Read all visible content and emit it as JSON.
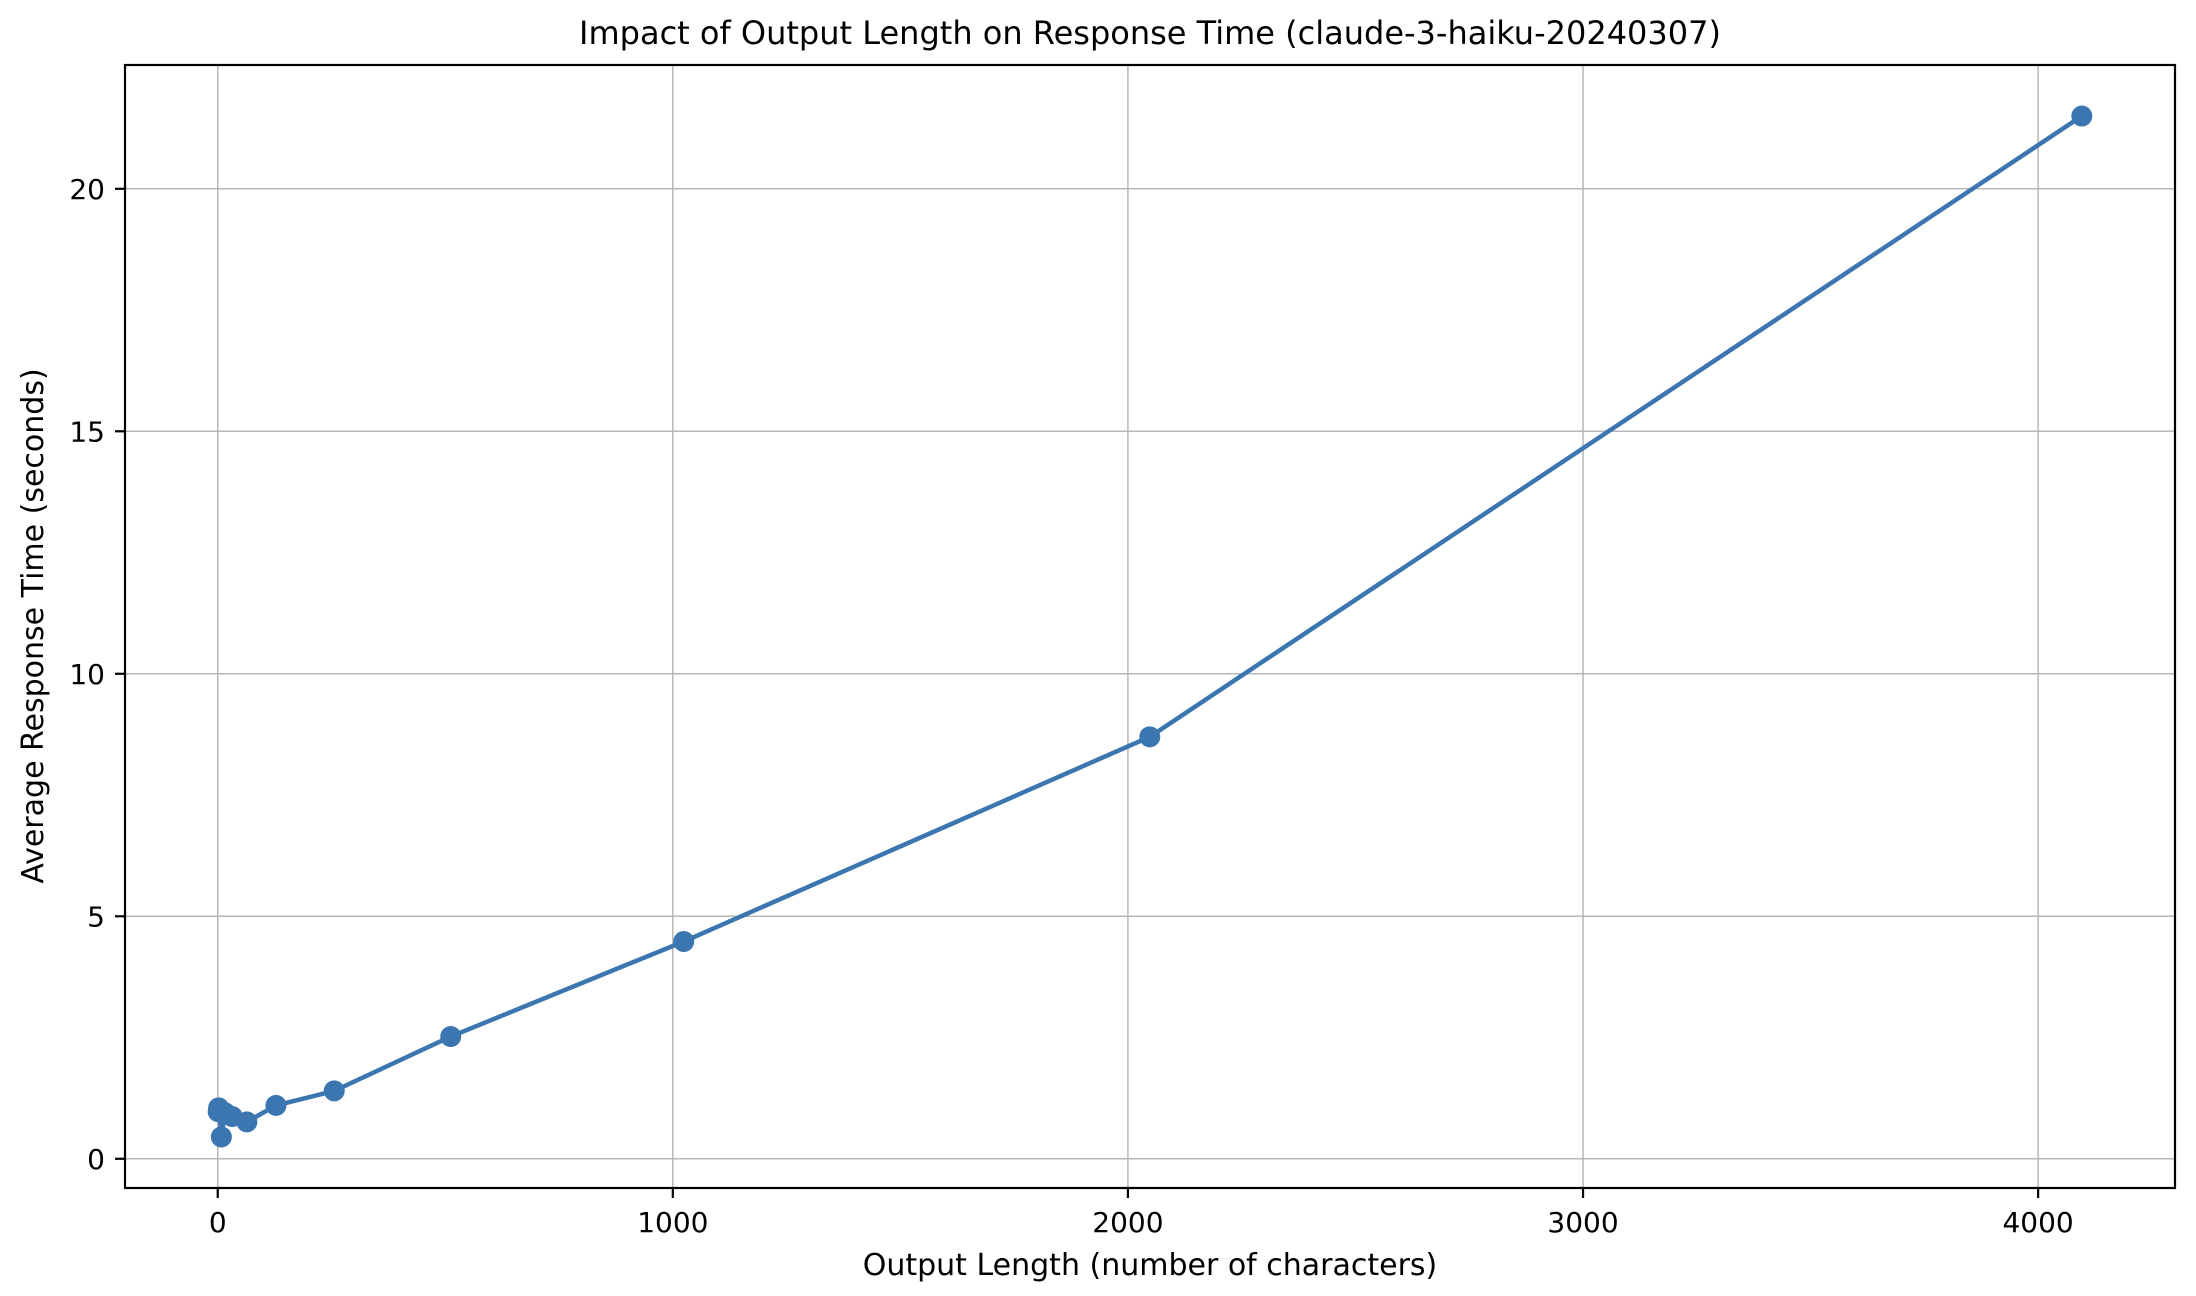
{
  "chart_data": {
    "type": "line",
    "title": "Impact of Output Length on Response Time (claude-3-haiku-20240307)",
    "xlabel": "Output Length (number of characters)",
    "ylabel": "Average Response Time (seconds)",
    "x": [
      1,
      2,
      4,
      8,
      16,
      32,
      64,
      128,
      256,
      512,
      1024,
      2048,
      4096
    ],
    "y": [
      0.97,
      1.05,
      0.98,
      0.45,
      0.95,
      0.87,
      0.76,
      1.1,
      1.4,
      2.52,
      4.48,
      8.7,
      21.5
    ],
    "xticks": [
      0,
      1000,
      2000,
      3000,
      4000
    ],
    "yticks": [
      0,
      5,
      10,
      15,
      20
    ],
    "xlim": [
      -203.75,
      4300.75
    ],
    "ylim": [
      -0.6025,
      22.5525
    ],
    "grid": true,
    "legend": "none",
    "line_color": "#3b76b0",
    "marker": "circle",
    "grid_color": "#b7b7b7",
    "spine_color": "#000000",
    "tick_label_color": "#000000"
  }
}
